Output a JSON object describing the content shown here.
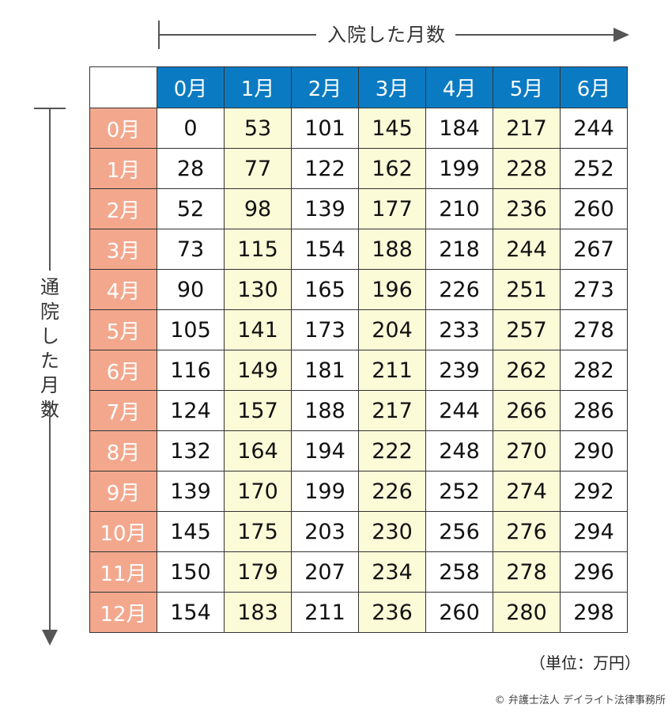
{
  "top_axis_label": "入院した月数",
  "left_axis_label": [
    "通",
    "院",
    "し",
    "た",
    "月",
    "数"
  ],
  "columns": [
    "0月",
    "1月",
    "2月",
    "3月",
    "4月",
    "5月",
    "6月"
  ],
  "highlight_columns": [
    1,
    3,
    5
  ],
  "colors": {
    "header_bg": "#0a7bc3",
    "row_header_bg": "#f3a88e",
    "highlight_bg": "#fbfbd8",
    "grid_line": "#333333"
  },
  "rows": [
    {
      "label": "0月",
      "values": [
        "0",
        "53",
        "101",
        "145",
        "184",
        "217",
        "244"
      ]
    },
    {
      "label": "1月",
      "values": [
        "28",
        "77",
        "122",
        "162",
        "199",
        "228",
        "252"
      ]
    },
    {
      "label": "2月",
      "values": [
        "52",
        "98",
        "139",
        "177",
        "210",
        "236",
        "260"
      ]
    },
    {
      "label": "3月",
      "values": [
        "73",
        "115",
        "154",
        "188",
        "218",
        "244",
        "267"
      ]
    },
    {
      "label": "4月",
      "values": [
        "90",
        "130",
        "165",
        "196",
        "226",
        "251",
        "273"
      ]
    },
    {
      "label": "5月",
      "values": [
        "105",
        "141",
        "173",
        "204",
        "233",
        "257",
        "278"
      ]
    },
    {
      "label": "6月",
      "values": [
        "116",
        "149",
        "181",
        "211",
        "239",
        "262",
        "282"
      ]
    },
    {
      "label": "7月",
      "values": [
        "124",
        "157",
        "188",
        "217",
        "244",
        "266",
        "286"
      ]
    },
    {
      "label": "8月",
      "values": [
        "132",
        "164",
        "194",
        "222",
        "248",
        "270",
        "290"
      ]
    },
    {
      "label": "9月",
      "values": [
        "139",
        "170",
        "199",
        "226",
        "252",
        "274",
        "292"
      ]
    },
    {
      "label": "10月",
      "values": [
        "145",
        "175",
        "203",
        "230",
        "256",
        "276",
        "294"
      ]
    },
    {
      "label": "11月",
      "values": [
        "150",
        "179",
        "207",
        "234",
        "258",
        "278",
        "296"
      ]
    },
    {
      "label": "12月",
      "values": [
        "154",
        "183",
        "211",
        "236",
        "260",
        "280",
        "298"
      ]
    }
  ],
  "unit_note": "（単位：万円）",
  "credit": "© 弁護士法人 デイライト法律事務所"
}
